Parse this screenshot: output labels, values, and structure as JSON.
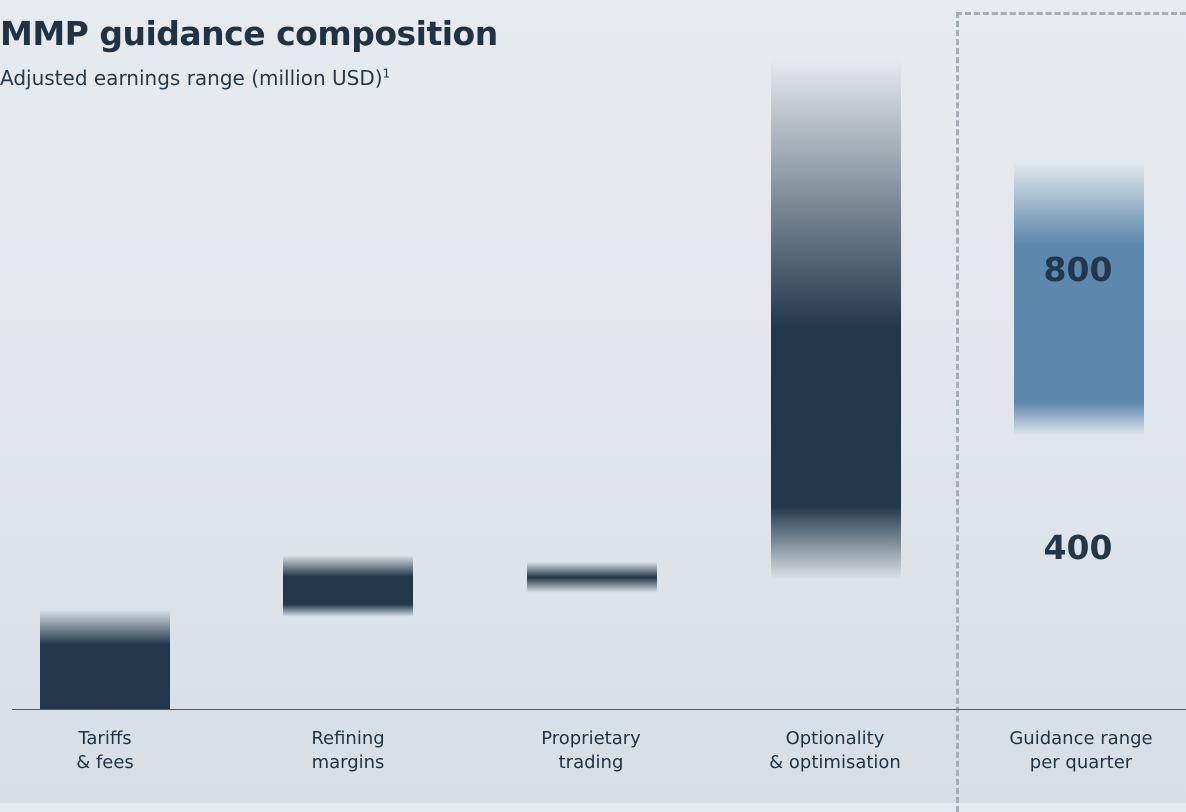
{
  "chart_data": {
    "type": "bar",
    "title": "MMP guidance composition",
    "subtitle": "Adjusted earnings range (million USD)",
    "subtitle_footnote": "1",
    "categories": [
      "Tariffs\n& fees",
      "Refining\nmargins",
      "Proprietary\ntrading",
      "Optionality\n& optimisation",
      "Guidance range\nper quarter"
    ],
    "series": [
      {
        "values_low": [
          0,
          135,
          170,
          190,
          400
        ],
        "values_high": [
          145,
          225,
          215,
          950,
          800
        ]
      }
    ],
    "range_labels": {
      "high": "800",
      "low": "400"
    },
    "ylim": [
      0,
      1000
    ],
    "colors": {
      "bar": "#22374a",
      "guidance": "#5d88ad"
    }
  }
}
